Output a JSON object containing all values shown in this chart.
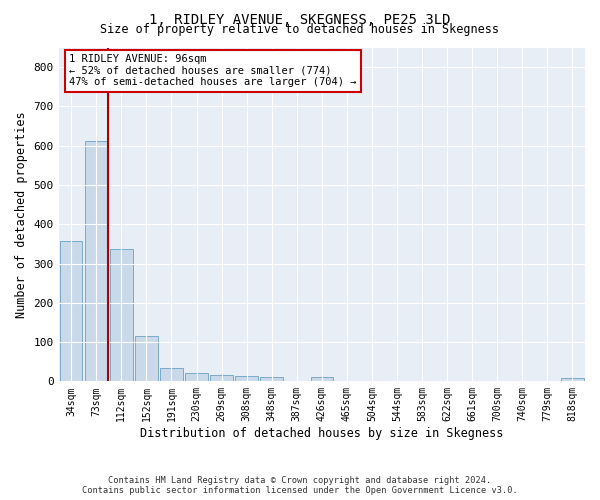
{
  "title": "1, RIDLEY AVENUE, SKEGNESS, PE25 3LD",
  "subtitle": "Size of property relative to detached houses in Skegness",
  "xlabel": "Distribution of detached houses by size in Skegness",
  "ylabel": "Number of detached properties",
  "bar_color": "#c9d9ea",
  "bar_edge_color": "#7aaac8",
  "background_color": "#e8eef6",
  "grid_color": "#ffffff",
  "categories": [
    "34sqm",
    "73sqm",
    "112sqm",
    "152sqm",
    "191sqm",
    "230sqm",
    "269sqm",
    "308sqm",
    "348sqm",
    "387sqm",
    "426sqm",
    "465sqm",
    "504sqm",
    "544sqm",
    "583sqm",
    "622sqm",
    "661sqm",
    "700sqm",
    "740sqm",
    "779sqm",
    "818sqm"
  ],
  "values": [
    357,
    612,
    336,
    115,
    35,
    20,
    15,
    13,
    10,
    0,
    10,
    0,
    0,
    0,
    0,
    0,
    0,
    0,
    0,
    0,
    8
  ],
  "vline_color": "#aa0000",
  "annotation_lines": [
    "1 RIDLEY AVENUE: 96sqm",
    "← 52% of detached houses are smaller (774)",
    "47% of semi-detached houses are larger (704) →"
  ],
  "ylim": [
    0,
    850
  ],
  "yticks": [
    0,
    100,
    200,
    300,
    400,
    500,
    600,
    700,
    800
  ],
  "footer_line1": "Contains HM Land Registry data © Crown copyright and database right 2024.",
  "footer_line2": "Contains public sector information licensed under the Open Government Licence v3.0."
}
